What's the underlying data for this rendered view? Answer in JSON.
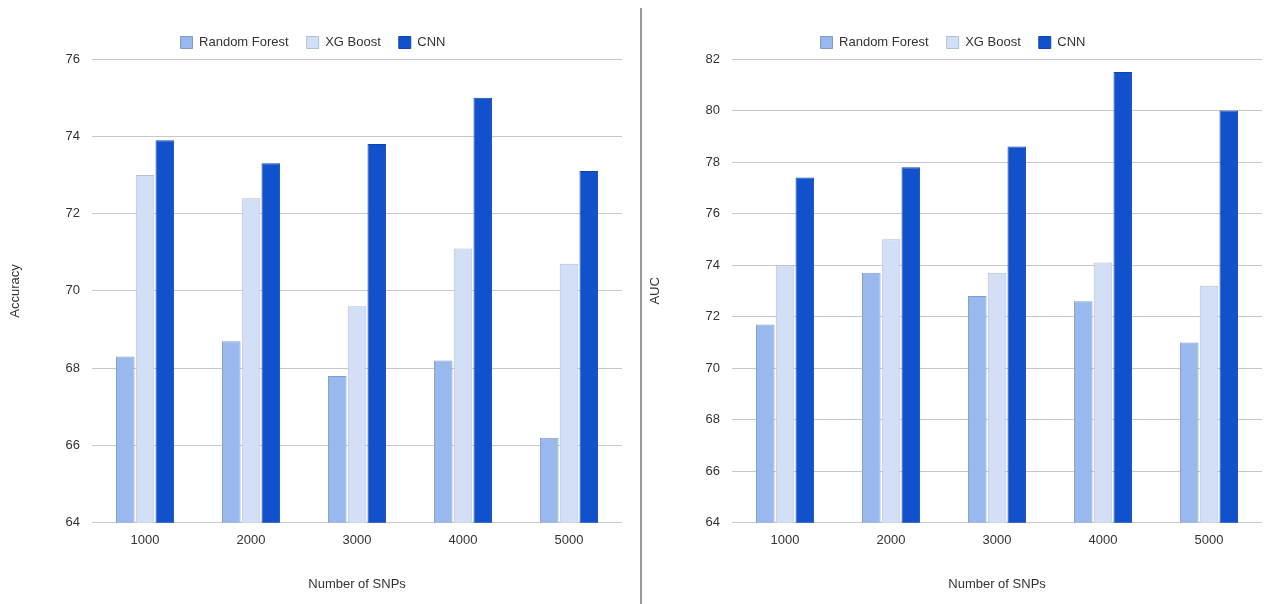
{
  "chart_data": [
    {
      "type": "bar",
      "xlabel": "Number of SNPs",
      "ylabel": "Accuracy",
      "categories": [
        "1000",
        "2000",
        "3000",
        "4000",
        "5000"
      ],
      "series": [
        {
          "name": "Random Forest",
          "color": "#98b8ee",
          "values": [
            68.3,
            68.7,
            67.8,
            68.2,
            66.2
          ]
        },
        {
          "name": "XG Boost",
          "color": "#d3dff7",
          "values": [
            73.0,
            72.4,
            69.6,
            71.1,
            70.7
          ]
        },
        {
          "name": "CNN",
          "color": "#1152cc",
          "values": [
            73.9,
            73.3,
            73.8,
            75.0,
            73.1
          ]
        }
      ],
      "ylim": [
        64,
        76
      ],
      "yticks": [
        64,
        66,
        68,
        70,
        72,
        74,
        76
      ],
      "grid": "y",
      "legend": "top"
    },
    {
      "type": "bar",
      "xlabel": "Number of SNPs",
      "ylabel": "AUC",
      "categories": [
        "1000",
        "2000",
        "3000",
        "4000",
        "5000"
      ],
      "series": [
        {
          "name": "Random Forest",
          "color": "#98b8ee",
          "values": [
            71.7,
            73.7,
            72.8,
            72.6,
            71.0
          ]
        },
        {
          "name": "XG Boost",
          "color": "#d3dff7",
          "values": [
            74.0,
            75.0,
            73.7,
            74.1,
            73.2
          ]
        },
        {
          "name": "CNN",
          "color": "#1152cc",
          "values": [
            77.4,
            77.8,
            78.6,
            81.5,
            80.0
          ]
        }
      ],
      "ylim": [
        64,
        82
      ],
      "yticks": [
        64,
        66,
        68,
        70,
        72,
        74,
        76,
        78,
        80,
        82
      ],
      "grid": "y",
      "legend": "top"
    }
  ]
}
